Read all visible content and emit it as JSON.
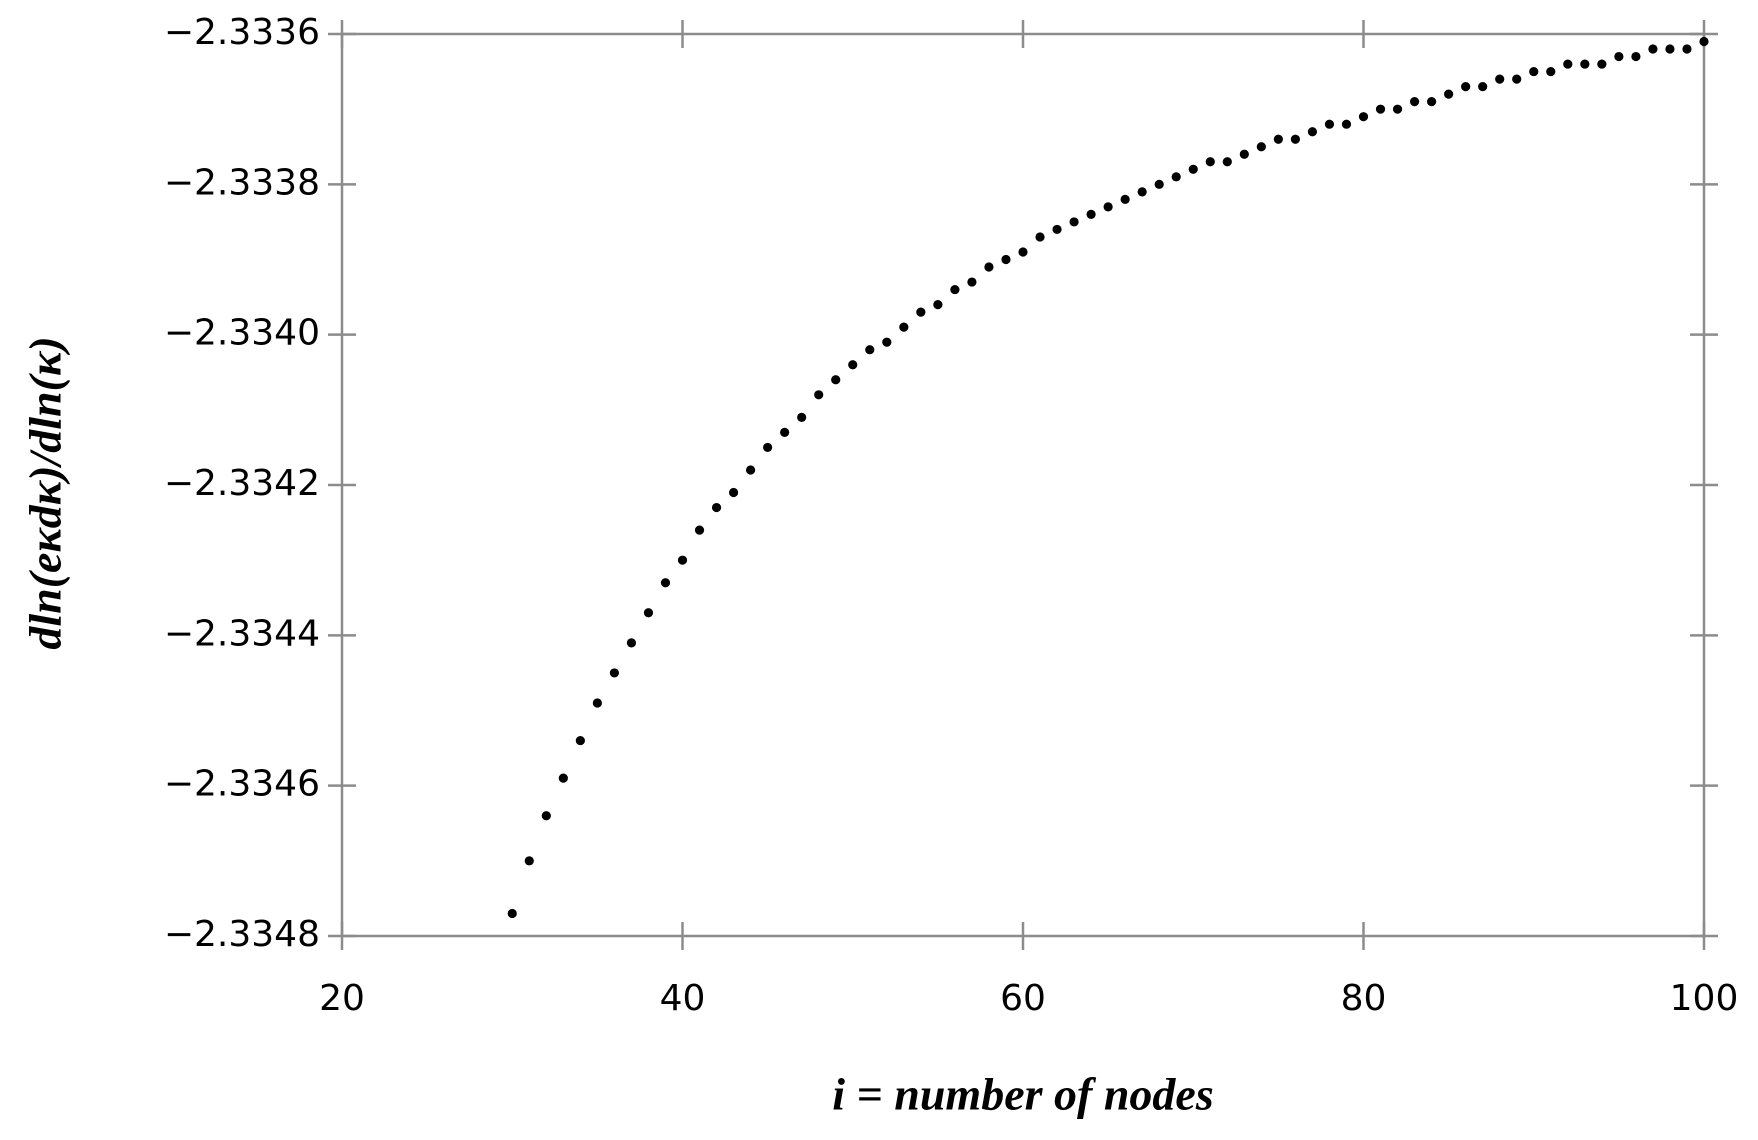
{
  "chart_data": {
    "type": "scatter",
    "x_label": "i = number of nodes",
    "y_label": "dln(eκdκ)/dln(κ)",
    "color": "#000000",
    "x": [
      30,
      31,
      32,
      33,
      34,
      35,
      36,
      37,
      38,
      39,
      40,
      41,
      42,
      43,
      44,
      45,
      46,
      47,
      48,
      49,
      50,
      51,
      52,
      53,
      54,
      55,
      56,
      57,
      58,
      59,
      60,
      61,
      62,
      63,
      64,
      65,
      66,
      67,
      68,
      69,
      70,
      71,
      72,
      73,
      74,
      75,
      76,
      77,
      78,
      79,
      80,
      81,
      82,
      83,
      84,
      85,
      86,
      87,
      88,
      89,
      90,
      91,
      92,
      93,
      94,
      95,
      96,
      97,
      98,
      99,
      100
    ],
    "values": [
      -2.33477,
      -2.3347,
      -2.33464,
      -2.33459,
      -2.33454,
      -2.33449,
      -2.33445,
      -2.33441,
      -2.33437,
      -2.33433,
      -2.3343,
      -2.33426,
      -2.33423,
      -2.33421,
      -2.33418,
      -2.33415,
      -2.33413,
      -2.33411,
      -2.33408,
      -2.33406,
      -2.33404,
      -2.33402,
      -2.33401,
      -2.33399,
      -2.33397,
      -2.33396,
      -2.33394,
      -2.33393,
      -2.33391,
      -2.3339,
      -2.33389,
      -2.33387,
      -2.33386,
      -2.33385,
      -2.33384,
      -2.33383,
      -2.33382,
      -2.33381,
      -2.3338,
      -2.33379,
      -2.33378,
      -2.33377,
      -2.33377,
      -2.33376,
      -2.33375,
      -2.33374,
      -2.33374,
      -2.33373,
      -2.33372,
      -2.33372,
      -2.33371,
      -2.3337,
      -2.3337,
      -2.33369,
      -2.33369,
      -2.33368,
      -2.33367,
      -2.33367,
      -2.33366,
      -2.33366,
      -2.33365,
      -2.33365,
      -2.33364,
      -2.33364,
      -2.33364,
      -2.33363,
      -2.33363,
      -2.33362,
      -2.33362,
      -2.33362,
      -2.33361
    ],
    "xlim": [
      20,
      100
    ],
    "xticks": [
      20,
      40,
      60,
      80,
      100
    ],
    "ylim": [
      -2.3348,
      -2.3336
    ],
    "yticks": [
      {
        "value": -2.3348,
        "label": "−2.3348"
      },
      {
        "value": -2.3346,
        "label": "−2.3346"
      },
      {
        "value": -2.3344,
        "label": "−2.3344"
      },
      {
        "value": -2.3342,
        "label": "−2.3342"
      },
      {
        "value": -2.334,
        "label": "−2.3340"
      },
      {
        "value": -2.3338,
        "label": "−2.3338"
      },
      {
        "value": -2.3336,
        "label": "−2.3336"
      }
    ],
    "grid": false
  }
}
